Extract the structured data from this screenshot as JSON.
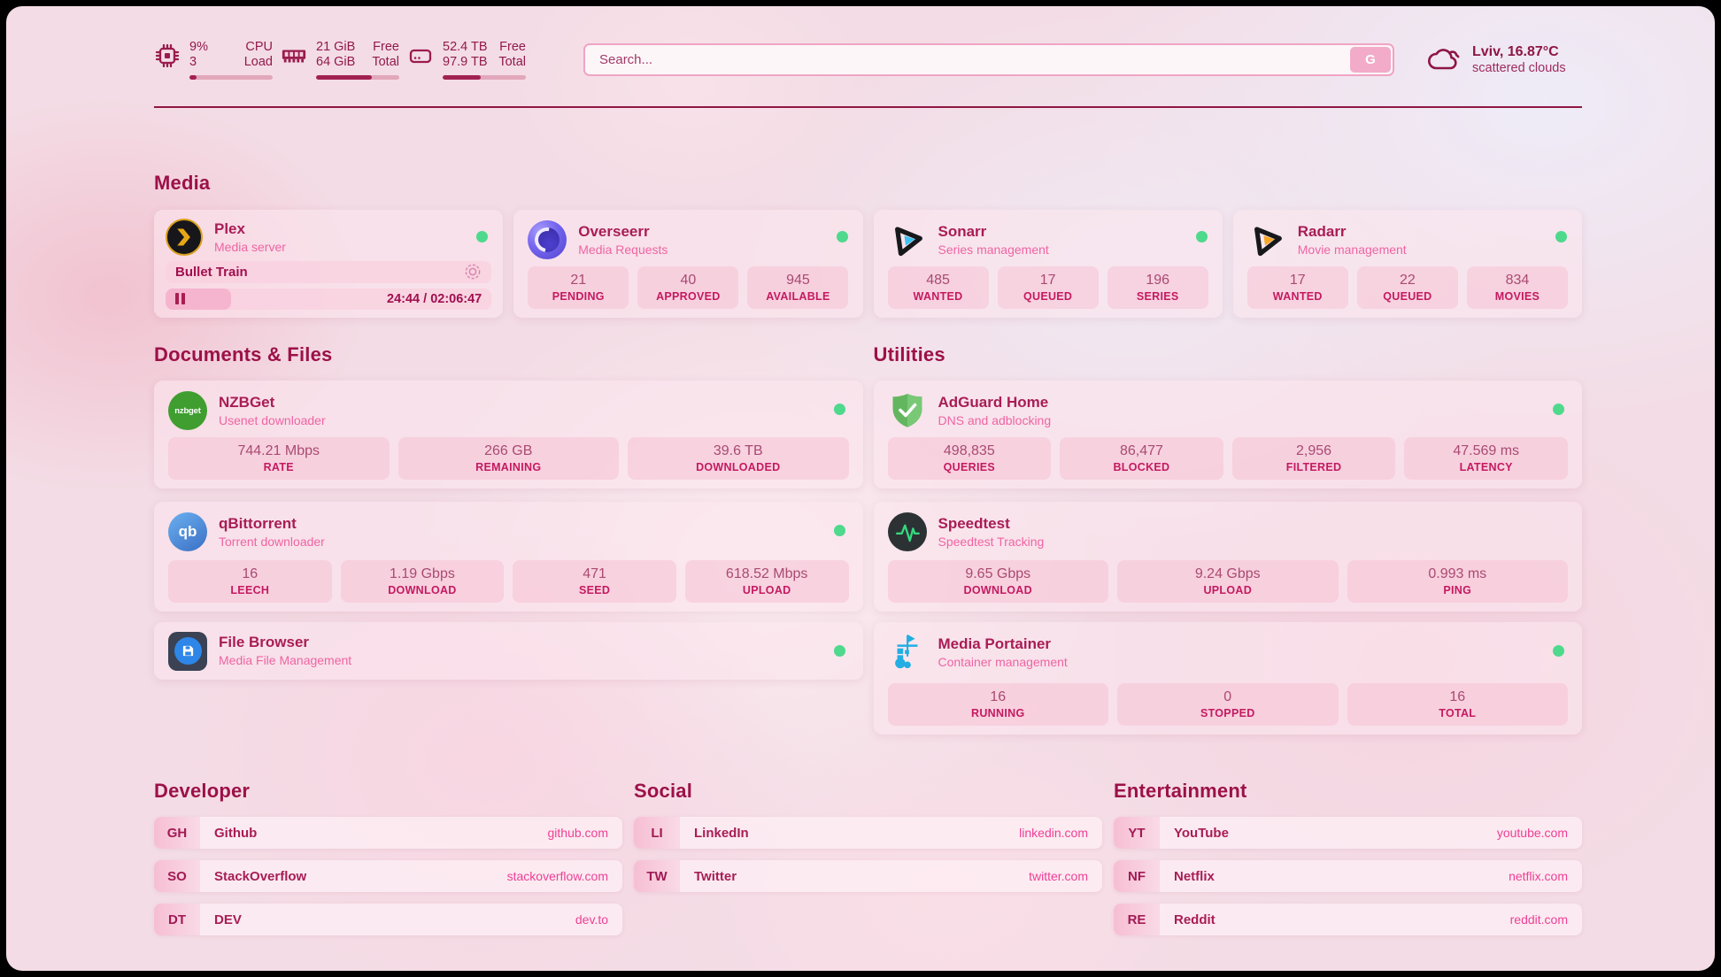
{
  "topbar": {
    "cpu": {
      "value_top": "9%",
      "value_bottom": "3",
      "label_top": "CPU",
      "label_bottom": "Load",
      "progress_pct": 9
    },
    "memory": {
      "value_top": "21 GiB",
      "value_bottom": "64 GiB",
      "label_top": "Free",
      "label_bottom": "Total",
      "progress_pct": 67
    },
    "disk": {
      "value_top": "52.4 TB",
      "value_bottom": "97.9 TB",
      "label_top": "Free",
      "label_bottom": "Total",
      "progress_pct": 46
    },
    "search": {
      "placeholder": "Search...",
      "engine_button": "G"
    },
    "weather": {
      "location_temp": "Lviv, 16.87°C",
      "condition": "scattered clouds"
    }
  },
  "sections": {
    "media": {
      "title": "Media",
      "cards": {
        "plex": {
          "name": "Plex",
          "subtitle": "Media server",
          "status": "online",
          "now_playing": {
            "title": "Bullet Train",
            "state": "paused",
            "time": "24:44 / 02:06:47",
            "progress_pct": 20
          }
        },
        "overseerr": {
          "name": "Overseerr",
          "subtitle": "Media Requests",
          "status": "online",
          "stats": [
            {
              "value": "21",
              "label": "PENDING"
            },
            {
              "value": "40",
              "label": "APPROVED"
            },
            {
              "value": "945",
              "label": "AVAILABLE"
            }
          ]
        },
        "sonarr": {
          "name": "Sonarr",
          "subtitle": "Series management",
          "status": "online",
          "stats": [
            {
              "value": "485",
              "label": "WANTED"
            },
            {
              "value": "17",
              "label": "QUEUED"
            },
            {
              "value": "196",
              "label": "SERIES"
            }
          ]
        },
        "radarr": {
          "name": "Radarr",
          "subtitle": "Movie management",
          "status": "online",
          "stats": [
            {
              "value": "17",
              "label": "WANTED"
            },
            {
              "value": "22",
              "label": "QUEUED"
            },
            {
              "value": "834",
              "label": "MOVIES"
            }
          ]
        }
      }
    },
    "documents": {
      "title": "Documents & Files",
      "cards": {
        "nzbget": {
          "name": "NZBGet",
          "subtitle": "Usenet downloader",
          "status": "online",
          "stats": [
            {
              "value": "744.21 Mbps",
              "label": "RATE"
            },
            {
              "value": "266 GB",
              "label": "REMAINING"
            },
            {
              "value": "39.6 TB",
              "label": "DOWNLOADED"
            }
          ]
        },
        "qbittorrent": {
          "name": "qBittorrent",
          "subtitle": "Torrent downloader",
          "status": "online",
          "stats": [
            {
              "value": "16",
              "label": "LEECH"
            },
            {
              "value": "1.19 Gbps",
              "label": "DOWNLOAD"
            },
            {
              "value": "471",
              "label": "SEED"
            },
            {
              "value": "618.52 Mbps",
              "label": "UPLOAD"
            }
          ]
        },
        "filebrowser": {
          "name": "File Browser",
          "subtitle": "Media File Management",
          "status": "online"
        }
      }
    },
    "utilities": {
      "title": "Utilities",
      "cards": {
        "adguard": {
          "name": "AdGuard Home",
          "subtitle": "DNS and adblocking",
          "status": "online",
          "stats": [
            {
              "value": "498,835",
              "label": "QUERIES"
            },
            {
              "value": "86,477",
              "label": "BLOCKED"
            },
            {
              "value": "2,956",
              "label": "FILTERED"
            },
            {
              "value": "47.569 ms",
              "label": "LATENCY"
            }
          ]
        },
        "speedtest": {
          "name": "Speedtest",
          "subtitle": "Speedtest Tracking",
          "status": "online",
          "stats": [
            {
              "value": "9.65 Gbps",
              "label": "DOWNLOAD"
            },
            {
              "value": "9.24 Gbps",
              "label": "UPLOAD"
            },
            {
              "value": "0.993 ms",
              "label": "PING"
            }
          ]
        },
        "portainer": {
          "name": "Media Portainer",
          "subtitle": "Container management",
          "status": "online",
          "stats": [
            {
              "value": "16",
              "label": "RUNNING"
            },
            {
              "value": "0",
              "label": "STOPPED"
            },
            {
              "value": "16",
              "label": "TOTAL"
            }
          ]
        }
      }
    },
    "developer": {
      "title": "Developer",
      "links": [
        {
          "abbr": "GH",
          "name": "Github",
          "url": "github.com"
        },
        {
          "abbr": "SO",
          "name": "StackOverflow",
          "url": "stackoverflow.com"
        },
        {
          "abbr": "DT",
          "name": "DEV",
          "url": "dev.to"
        }
      ]
    },
    "social": {
      "title": "Social",
      "links": [
        {
          "abbr": "LI",
          "name": "LinkedIn",
          "url": "linkedin.com"
        },
        {
          "abbr": "TW",
          "name": "Twitter",
          "url": "twitter.com"
        }
      ]
    },
    "entertainment": {
      "title": "Entertainment",
      "links": [
        {
          "abbr": "YT",
          "name": "YouTube",
          "url": "youtube.com"
        },
        {
          "abbr": "NF",
          "name": "Netflix",
          "url": "netflix.com"
        },
        {
          "abbr": "RE",
          "name": "Reddit",
          "url": "reddit.com"
        }
      ]
    }
  },
  "colors": {
    "status_online": "#4ed98c",
    "accent": "#9c1148"
  }
}
